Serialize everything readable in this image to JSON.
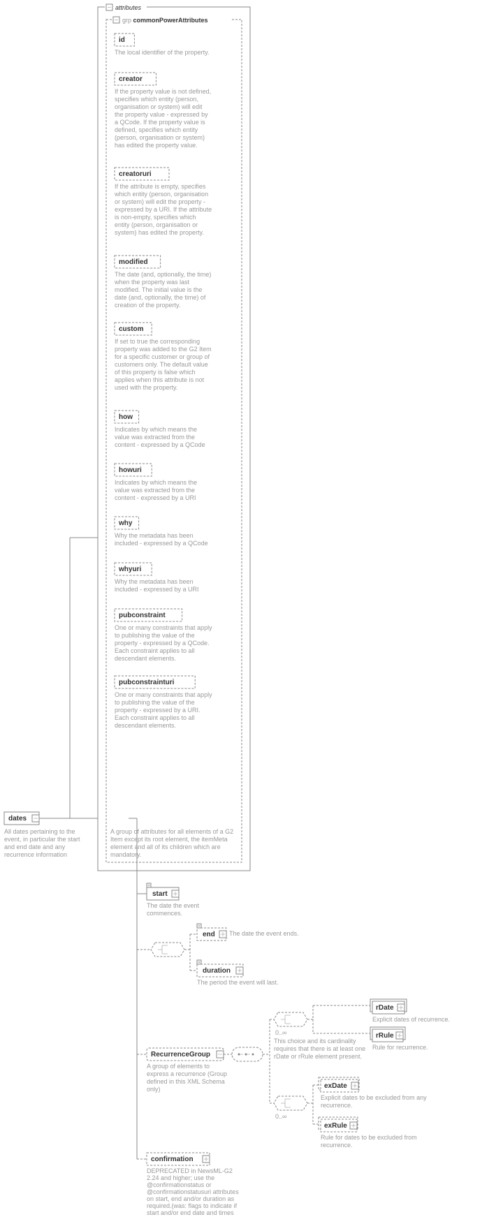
{
  "root": {
    "label": "dates",
    "desc": "All dates pertaining to the event, in particular the start and end date and any recurrence information"
  },
  "attrbox": {
    "label": "attributes"
  },
  "grp": {
    "prefix": "grp",
    "label": "commonPowerAttributes",
    "desc": "A group of attributes for all elements of a G2 Item except its root element, the itemMeta element and all of its children which are mandatory."
  },
  "attrs": [
    {
      "label": "id",
      "desc": "The local identifier of the property."
    },
    {
      "label": "creator",
      "desc": "If the property value is not defined, specifies which entity (person, organisation or system) will edit the property value - expressed by a QCode. If the property value is defined, specifies which entity (person, organisation or system) has edited the property value."
    },
    {
      "label": "creatoruri",
      "desc": "If the attribute is empty, specifies which entity (person, organisation or system) will edit the property - expressed by a URI. If the attribute is non-empty, specifies which entity (person, organisation or system) has edited the property."
    },
    {
      "label": "modified",
      "desc": "The date (and, optionally, the time) when the property was last modified. The initial value is the date (and, optionally, the time) of creation of the property."
    },
    {
      "label": "custom",
      "desc": "If set to true the corresponding property was added to the G2 Item for a specific customer or group of customers only. The default value of this property is false which applies when this attribute is not used with the property."
    },
    {
      "label": "how",
      "desc": "Indicates by which means the value was extracted from the content - expressed by a QCode"
    },
    {
      "label": "howuri",
      "desc": "Indicates by which means the value was extracted from the content - expressed by a URI"
    },
    {
      "label": "why",
      "desc": "Why the metadata has been included - expressed by a QCode"
    },
    {
      "label": "whyuri",
      "desc": "Why the metadata has been included - expressed by a URI"
    },
    {
      "label": "pubconstraint",
      "desc": "One or many constraints that apply to publishing the value of the property - expressed by a QCode. Each constraint applies to all descendant elements."
    },
    {
      "label": "pubconstrainturi",
      "desc": "One or many constraints that apply to publishing the value of the property - expressed by a URI. Each constraint applies to all descendant elements."
    }
  ],
  "start": {
    "label": "start",
    "desc": "The date the event commences."
  },
  "end": {
    "label": "end",
    "desc": "The date the event ends."
  },
  "duration": {
    "label": "duration",
    "desc": "The period the event will last."
  },
  "recgrp": {
    "label": "RecurrenceGroup",
    "desc": "A group of elements to express a recurrence (Group defined in this XML Schema only)"
  },
  "choicedesc": "This choice and its cardinality requires that there is at least one rDate or rRule element present.",
  "rDate": {
    "label": "rDate",
    "desc": "Explicit dates of recurrence."
  },
  "rRule": {
    "label": "rRule",
    "desc": "Rule for recurrence."
  },
  "exDate": {
    "label": "exDate",
    "desc": "Explicit dates to be excluded from any recurrence."
  },
  "exRule": {
    "label": "exRule",
    "desc": "Rule for dates to be excluded from recurrence."
  },
  "confirmation": {
    "label": "confirmation",
    "desc": "DEPRECATED in NewsML-G2 2.24 and higher; use the @confirmationstatus or @confirmationstatusuri attributes on start, end and/or duration as required.(was: flags to indicate if start and/or end date and times are confirm..."
  },
  "card": "0..∞"
}
